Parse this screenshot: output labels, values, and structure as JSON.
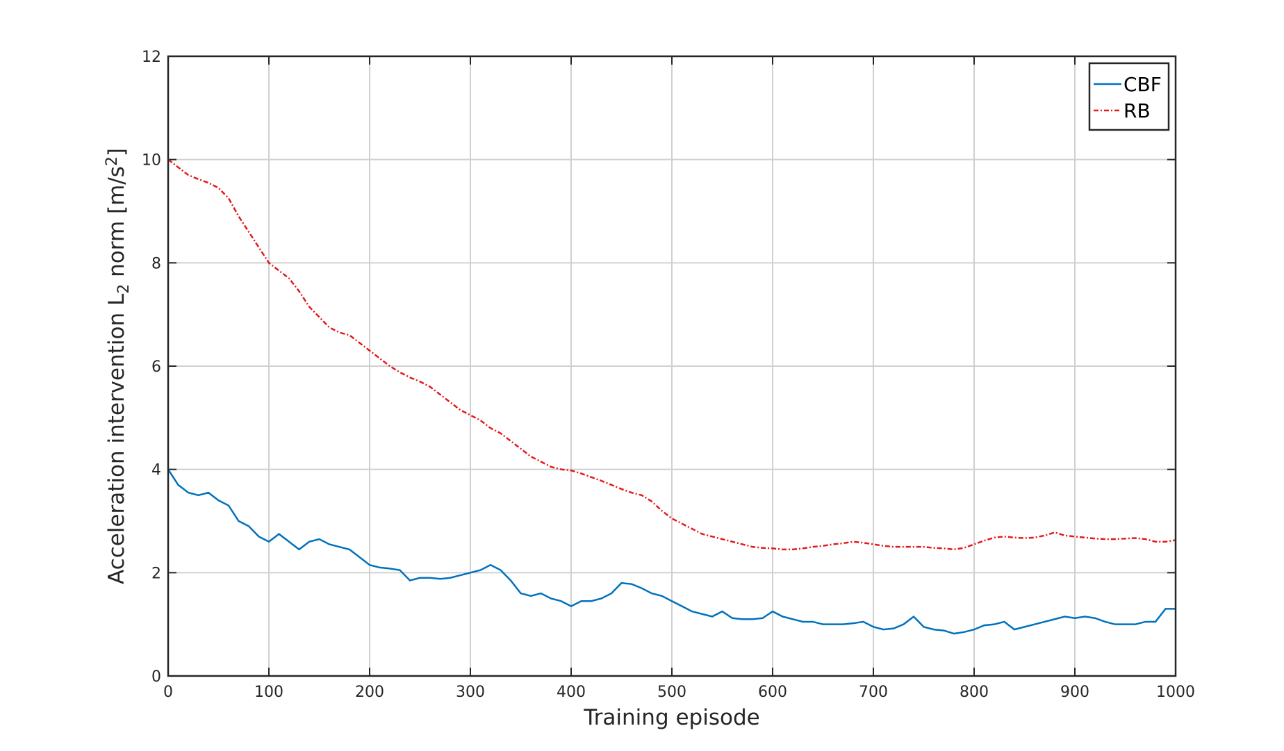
{
  "chart_data": {
    "type": "line",
    "xlabel": "Training episode",
    "ylabel_parts": [
      {
        "text": "Acceleration intervention L"
      },
      {
        "text": "2",
        "shift": "sub"
      },
      {
        "text": " norm [m/s"
      },
      {
        "text": "2",
        "shift": "super"
      },
      {
        "text": "]"
      }
    ],
    "x": [
      0,
      10,
      20,
      30,
      40,
      50,
      60,
      70,
      80,
      90,
      100,
      110,
      120,
      130,
      140,
      150,
      160,
      170,
      180,
      190,
      200,
      210,
      220,
      230,
      240,
      250,
      260,
      270,
      280,
      290,
      300,
      310,
      320,
      330,
      340,
      350,
      360,
      370,
      380,
      390,
      400,
      410,
      420,
      430,
      440,
      450,
      460,
      470,
      480,
      490,
      500,
      510,
      520,
      530,
      540,
      550,
      560,
      570,
      580,
      590,
      600,
      610,
      620,
      630,
      640,
      650,
      660,
      670,
      680,
      690,
      700,
      710,
      720,
      730,
      740,
      750,
      760,
      770,
      780,
      790,
      800,
      810,
      820,
      830,
      840,
      850,
      860,
      870,
      880,
      890,
      900,
      910,
      920,
      930,
      940,
      950,
      960,
      970,
      980,
      990,
      1000
    ],
    "series": [
      {
        "name": "CBF",
        "color": "#0072bd",
        "dash": "",
        "values": [
          4.0,
          3.7,
          3.55,
          3.5,
          3.55,
          3.4,
          3.3,
          3.0,
          2.9,
          2.7,
          2.6,
          2.75,
          2.6,
          2.45,
          2.6,
          2.65,
          2.55,
          2.5,
          2.45,
          2.3,
          2.15,
          2.1,
          2.08,
          2.05,
          1.85,
          1.9,
          1.9,
          1.88,
          1.9,
          1.95,
          2.0,
          2.05,
          2.15,
          2.05,
          1.85,
          1.6,
          1.55,
          1.6,
          1.5,
          1.45,
          1.35,
          1.45,
          1.45,
          1.5,
          1.6,
          1.8,
          1.78,
          1.7,
          1.6,
          1.55,
          1.45,
          1.35,
          1.25,
          1.2,
          1.15,
          1.25,
          1.12,
          1.1,
          1.1,
          1.12,
          1.25,
          1.15,
          1.1,
          1.05,
          1.05,
          1.0,
          1.0,
          1.0,
          1.02,
          1.05,
          0.95,
          0.9,
          0.92,
          1.0,
          1.15,
          0.95,
          0.9,
          0.88,
          0.82,
          0.85,
          0.9,
          0.98,
          1.0,
          1.05,
          0.9,
          0.95,
          1.0,
          1.05,
          1.1,
          1.15,
          1.12,
          1.15,
          1.12,
          1.05,
          1.0,
          1.0,
          1.0,
          1.05,
          1.05,
          1.3,
          1.3
        ]
      },
      {
        "name": "RB",
        "color": "#e31a1c",
        "dash": "7,3,2,3",
        "values": [
          10.0,
          9.85,
          9.7,
          9.62,
          9.55,
          9.45,
          9.25,
          8.9,
          8.6,
          8.3,
          8.0,
          7.85,
          7.7,
          7.45,
          7.15,
          6.95,
          6.75,
          6.65,
          6.6,
          6.45,
          6.3,
          6.15,
          6.0,
          5.88,
          5.78,
          5.7,
          5.6,
          5.45,
          5.3,
          5.15,
          5.05,
          4.95,
          4.8,
          4.7,
          4.55,
          4.4,
          4.25,
          4.15,
          4.05,
          4.0,
          3.98,
          3.92,
          3.85,
          3.78,
          3.7,
          3.62,
          3.55,
          3.5,
          3.38,
          3.2,
          3.05,
          2.95,
          2.85,
          2.75,
          2.7,
          2.65,
          2.6,
          2.55,
          2.5,
          2.48,
          2.47,
          2.45,
          2.45,
          2.47,
          2.5,
          2.52,
          2.55,
          2.57,
          2.6,
          2.58,
          2.55,
          2.52,
          2.5,
          2.5,
          2.5,
          2.5,
          2.48,
          2.47,
          2.45,
          2.48,
          2.55,
          2.62,
          2.68,
          2.7,
          2.68,
          2.67,
          2.68,
          2.72,
          2.78,
          2.72,
          2.7,
          2.68,
          2.66,
          2.65,
          2.65,
          2.66,
          2.67,
          2.65,
          2.6,
          2.6,
          2.63
        ]
      }
    ],
    "xlim": [
      0,
      1000
    ],
    "xticks": [
      0,
      100,
      200,
      300,
      400,
      500,
      600,
      700,
      800,
      900,
      1000
    ],
    "ylim": [
      0,
      12
    ],
    "yticks": [
      0,
      2,
      4,
      6,
      8,
      10,
      12
    ],
    "grid": true,
    "legend": "upper right"
  }
}
